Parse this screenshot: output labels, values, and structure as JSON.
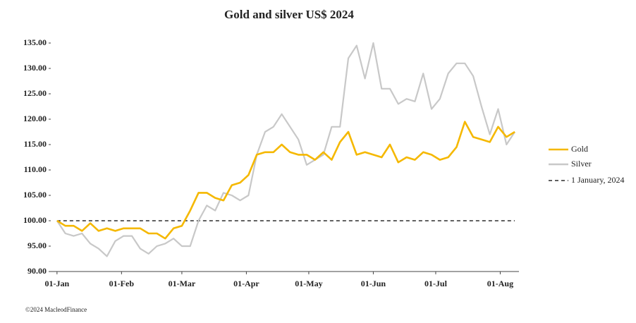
{
  "chart_data": {
    "type": "line",
    "title": "Gold and silver  US$ 2024",
    "x": [
      0,
      4,
      8,
      12,
      16,
      20,
      24,
      28,
      32,
      36,
      40,
      44,
      48,
      52,
      56,
      60,
      64,
      68,
      72,
      76,
      80,
      84,
      88,
      92,
      96,
      100,
      104,
      108,
      112,
      116,
      120,
      124,
      128,
      132,
      136,
      140,
      144,
      148,
      152,
      156,
      160,
      164,
      168,
      172,
      176,
      180,
      184,
      188,
      192,
      196,
      200,
      204,
      208,
      212,
      216,
      220
    ],
    "series": [
      {
        "name": "Gold",
        "color": "#f5b800",
        "values": [
          100,
          99,
          99,
          98,
          99.5,
          98,
          98.5,
          98,
          98.5,
          98.5,
          98.5,
          97.5,
          97.5,
          96.5,
          98.5,
          99,
          102,
          105.5,
          105.5,
          104.5,
          104,
          107,
          107.5,
          109,
          113,
          113.5,
          113.5,
          115,
          113.5,
          113,
          113,
          112,
          113.5,
          112,
          115.5,
          117.5,
          113,
          113.5,
          113,
          112.5,
          115,
          111.5,
          112.5,
          112,
          113.5,
          113,
          112,
          112.5,
          114.5,
          119.5,
          116.5,
          116,
          115.5,
          118.5,
          116.5,
          117.5
        ]
      },
      {
        "name": "Silver",
        "color": "#c8c8c8",
        "values": [
          100,
          97.5,
          97,
          97.5,
          95.5,
          94.5,
          93,
          96,
          97,
          97,
          94.5,
          93.5,
          95,
          95.5,
          96.5,
          95,
          95,
          100,
          103,
          102,
          105.5,
          105,
          104,
          105,
          113,
          117.5,
          118.5,
          121,
          118.5,
          116,
          111,
          112,
          113,
          118.5,
          118.5,
          132,
          134.5,
          128,
          135,
          126,
          126,
          123,
          124,
          123.5,
          129,
          122,
          124,
          129,
          131,
          131,
          128.5,
          122.5,
          117,
          122,
          115,
          117.5
        ]
      }
    ],
    "reference_line": {
      "name": "1 January, 2024",
      "value": 100,
      "color": "#000000",
      "dashed": true
    },
    "xlim": [
      -3,
      222
    ],
    "xticks": [
      {
        "value": 0,
        "label": "01-Jan"
      },
      {
        "value": 31,
        "label": "01-Feb"
      },
      {
        "value": 60,
        "label": "01-Mar"
      },
      {
        "value": 91,
        "label": "01-Apr"
      },
      {
        "value": 121,
        "label": "01-May"
      },
      {
        "value": 152,
        "label": "01-Jun"
      },
      {
        "value": 182,
        "label": "01-Jul"
      },
      {
        "value": 213,
        "label": "01-Aug"
      }
    ],
    "ylim": [
      90,
      135
    ],
    "yticks": [
      {
        "value": 90,
        "label": "90.00"
      },
      {
        "value": 95,
        "label": "95.00"
      },
      {
        "value": 100,
        "label": "100.00"
      },
      {
        "value": 105,
        "label": "105.00"
      },
      {
        "value": 110,
        "label": "110.00"
      },
      {
        "value": 115,
        "label": "115.00"
      },
      {
        "value": 120,
        "label": "120.00"
      },
      {
        "value": 125,
        "label": "125.00"
      },
      {
        "value": 130,
        "label": "130.00"
      },
      {
        "value": 135,
        "label": "135.00"
      }
    ],
    "legend": "right",
    "grid": false,
    "footnote": "©2024 MacleodFinance"
  }
}
